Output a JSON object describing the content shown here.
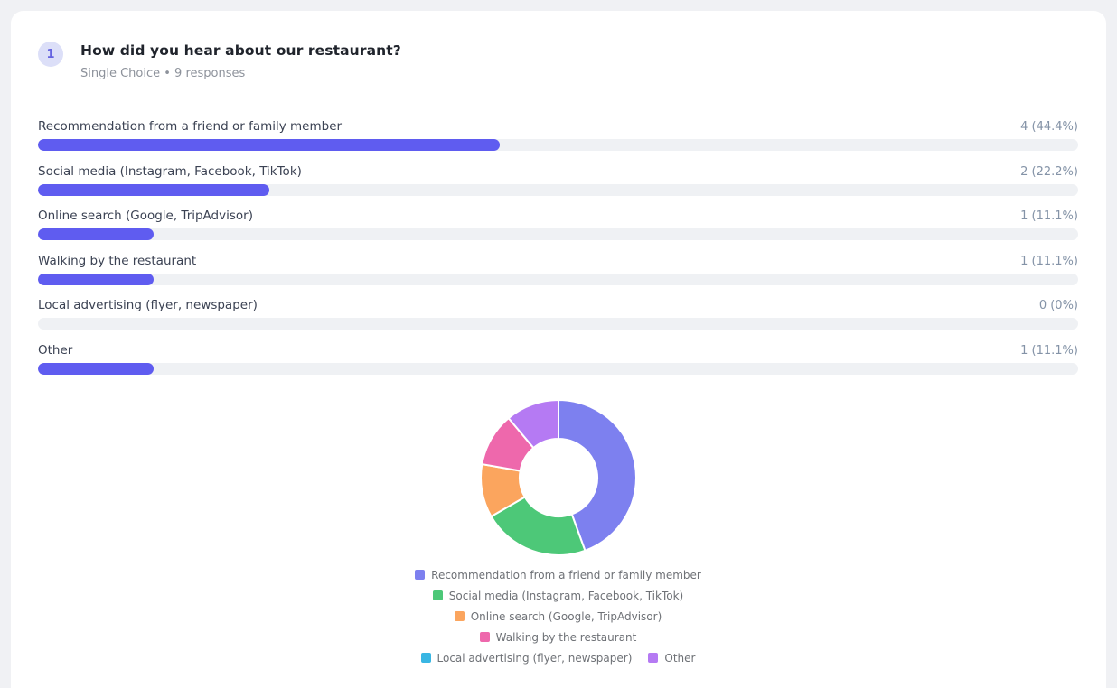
{
  "page": {
    "background": "#f0f1f4",
    "card_background": "#ffffff"
  },
  "question": {
    "number": "1",
    "title": "How did you hear about our restaurant?",
    "meta": "Single Choice • 9 responses",
    "badge_bg": "#dcdff8",
    "badge_color": "#6563e0"
  },
  "chart_data": [
    {
      "type": "bar",
      "orientation": "horizontal",
      "title": "How did you hear about our restaurant?",
      "categories": [
        "Recommendation from a friend or family member",
        "Social media (Instagram, Facebook, TikTok)",
        "Online search (Google, TripAdvisor)",
        "Walking by the restaurant",
        "Local advertising (flyer, newspaper)",
        "Other"
      ],
      "values": [
        4,
        2,
        1,
        1,
        0,
        1
      ],
      "percents": [
        44.4,
        22.2,
        11.1,
        11.1,
        0,
        11.1
      ],
      "value_labels": [
        "4 (44.4%)",
        "2 (22.2%)",
        "1 (11.1%)",
        "1 (11.1%)",
        "0 (0%)",
        "1 (11.1%)"
      ],
      "total_responses": 9,
      "bar_color": "#5f5cf0",
      "track_color": "#eff1f4",
      "xlim": [
        0,
        100
      ]
    },
    {
      "type": "pie",
      "donut": true,
      "cutout_ratio": 0.5,
      "start_angle_deg": -90,
      "direction": "clockwise",
      "categories": [
        "Recommendation from a friend or family member",
        "Social media (Instagram, Facebook, TikTok)",
        "Online search (Google, TripAdvisor)",
        "Walking by the restaurant",
        "Local advertising (flyer, newspaper)",
        "Other"
      ],
      "values": [
        4,
        2,
        1,
        1,
        0,
        1
      ],
      "colors": [
        "#7d80ef",
        "#4dc878",
        "#fba55e",
        "#ee68ac",
        "#39b6e3",
        "#b57af3"
      ],
      "border_color": "#ffffff",
      "legend_position": "bottom",
      "title": ""
    }
  ]
}
